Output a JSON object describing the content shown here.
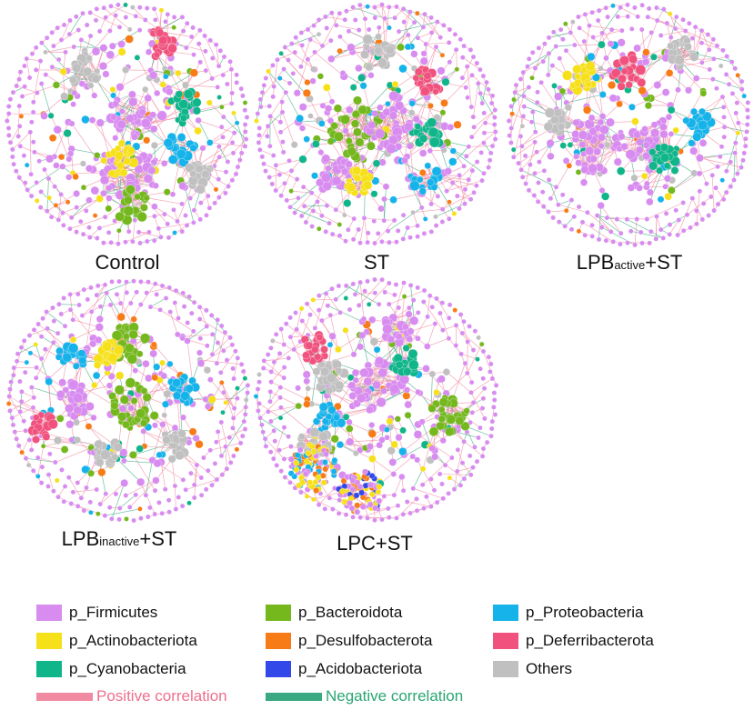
{
  "colors": {
    "firmicutes": "#d88cf0",
    "actinobacteriota": "#f6e01a",
    "cyanobacteria": "#10b58a",
    "bacteroidota": "#74b81e",
    "desulfobacterota": "#f77b16",
    "acidobacteriota": "#3248e8",
    "proteobacteria": "#16b3ea",
    "deferribacterota": "#f0527d",
    "others": "#c0c0c0",
    "positive_edge": "#f08aa0",
    "negative_edge": "#3aa981"
  },
  "networks": [
    {
      "id": "control",
      "label": "Control",
      "sub": "",
      "suffix": ""
    },
    {
      "id": "st",
      "label": "ST",
      "sub": "",
      "suffix": ""
    },
    {
      "id": "lpb-active",
      "label": "LPB",
      "sub": "active",
      "suffix": "+ST"
    },
    {
      "id": "lpb-inactive",
      "label": "LPB",
      "sub": "inactive",
      "suffix": "+ST"
    },
    {
      "id": "lpc",
      "label": "LPC+ST",
      "sub": "",
      "suffix": ""
    }
  ],
  "legend": {
    "phyla": [
      {
        "label": "p_Firmicutes",
        "color_key": "firmicutes"
      },
      {
        "label": "p_Bacteroidota",
        "color_key": "bacteroidota"
      },
      {
        "label": "p_Proteobacteria",
        "color_key": "proteobacteria"
      },
      {
        "label": "p_Actinobacteriota",
        "color_key": "actinobacteriota"
      },
      {
        "label": "p_Desulfobacterota",
        "color_key": "desulfobacterota"
      },
      {
        "label": "p_Deferribacterota",
        "color_key": "deferribacterota"
      },
      {
        "label": "p_Cyanobacteria",
        "color_key": "cyanobacteria"
      },
      {
        "label": "p_Acidobacteriota",
        "color_key": "acidobacteriota"
      },
      {
        "label": "Others",
        "color_key": "others"
      }
    ],
    "edges": [
      {
        "label": "Positive correlation",
        "color_key": "positive_edge"
      },
      {
        "label": "Negative correlation",
        "color_key": "negative_edge"
      }
    ]
  }
}
